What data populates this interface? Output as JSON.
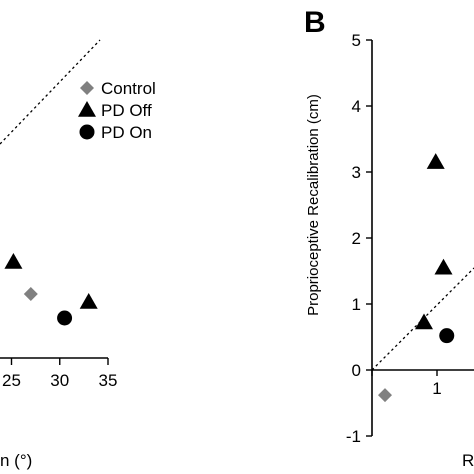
{
  "panel_labels": {
    "right": "B"
  },
  "legend": [
    {
      "label": "Control",
      "marker": "diamond",
      "color": "#808080"
    },
    {
      "label": "PD Off",
      "marker": "triangle",
      "color": "#000000"
    },
    {
      "label": "PD On",
      "marker": "circle",
      "color": "#000000"
    }
  ],
  "chart_data": [
    {
      "type": "scatter",
      "panel": "left",
      "xlabel": "n (°)",
      "ylabel": "",
      "xticks": [
        "25",
        "30",
        "35"
      ],
      "xtick_values": [
        25,
        30,
        35
      ],
      "series": [
        {
          "name": "Control",
          "marker": "diamond",
          "color": "#808080",
          "points": [
            [
              27,
              1.6
            ]
          ]
        },
        {
          "name": "PD Off",
          "marker": "triangle",
          "color": "#000000",
          "points": [
            [
              25.2,
              2.4
            ],
            [
              33,
              1.4
            ]
          ]
        },
        {
          "name": "PD On",
          "marker": "circle",
          "color": "#000000",
          "points": [
            [
              30.5,
              1.0
            ]
          ]
        }
      ],
      "reference_line": "dotted identity line (upper left)"
    },
    {
      "type": "scatter",
      "panel": "right",
      "xlabel": "R",
      "ylabel": "Proprioceptive Recalibration (cm)",
      "ylim": [
        -1,
        5
      ],
      "yticks": [
        "-1",
        "0",
        "1",
        "2",
        "3",
        "4",
        "5"
      ],
      "ytick_values": [
        -1,
        0,
        1,
        2,
        3,
        4,
        5
      ],
      "xticks": [
        "0",
        "1"
      ],
      "xtick_values": [
        0,
        1
      ],
      "series": [
        {
          "name": "Control",
          "marker": "diamond",
          "color": "#808080",
          "points": [
            [
              0.2,
              -0.38
            ]
          ]
        },
        {
          "name": "PD Off",
          "marker": "triangle",
          "color": "#000000",
          "points": [
            [
              0.98,
              3.15
            ],
            [
              1.1,
              1.55
            ],
            [
              0.8,
              0.72
            ]
          ]
        },
        {
          "name": "PD On",
          "marker": "circle",
          "color": "#000000",
          "points": [
            [
              1.15,
              0.52
            ]
          ]
        }
      ],
      "reference_line": "dotted identity line y = x"
    }
  ]
}
